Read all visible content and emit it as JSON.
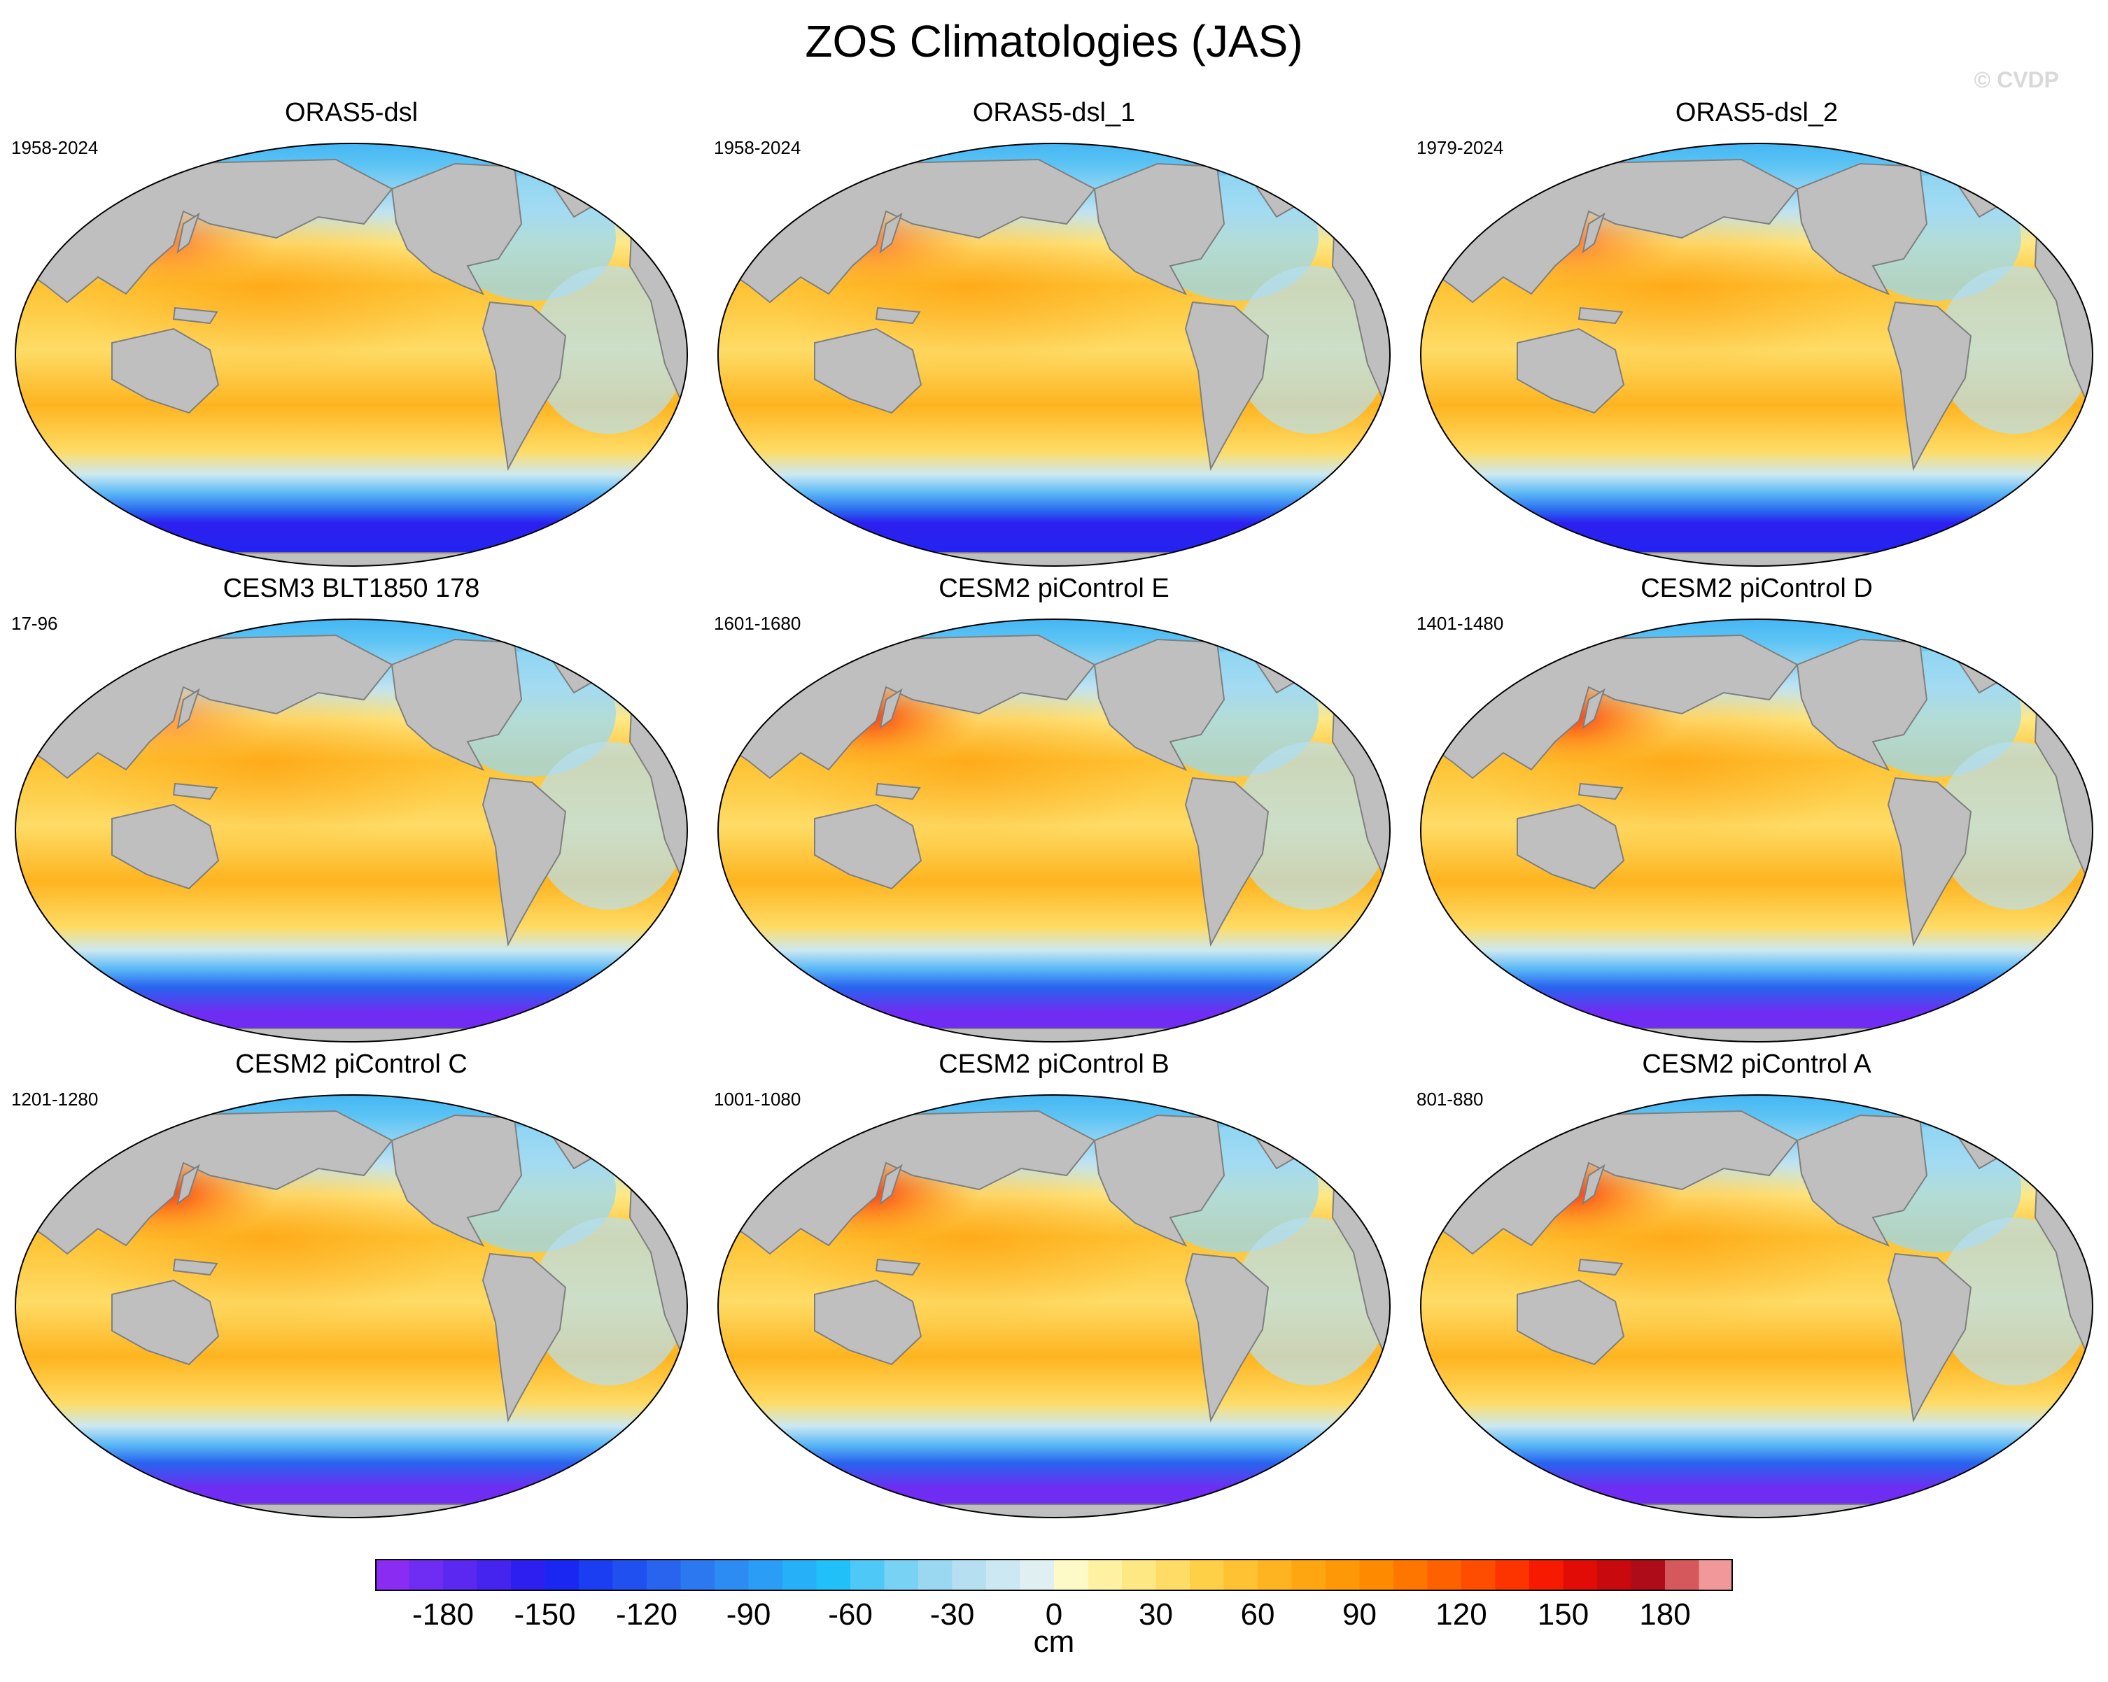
{
  "figure": {
    "title": "ZOS Climatologies (JAS)",
    "credit": "© CVDP"
  },
  "panels": [
    {
      "title": "ORAS5-dsl",
      "period": "1958-2024",
      "style": "obs"
    },
    {
      "title": "ORAS5-dsl_1",
      "period": "1958-2024",
      "style": "obs"
    },
    {
      "title": "ORAS5-dsl_2",
      "period": "1979-2024",
      "style": "obs"
    },
    {
      "title": "CESM3 BLT1850 178",
      "period": "17-96",
      "style": "cesm3"
    },
    {
      "title": "CESM2 piControl E",
      "period": "1601-1680",
      "style": "model"
    },
    {
      "title": "CESM2 piControl D",
      "period": "1401-1480",
      "style": "model"
    },
    {
      "title": "CESM2 piControl C",
      "period": "1201-1280",
      "style": "model"
    },
    {
      "title": "CESM2 piControl B",
      "period": "1001-1080",
      "style": "model"
    },
    {
      "title": "CESM2 piControl A",
      "period": "801-880",
      "style": "model"
    }
  ],
  "colorbar": {
    "unit": "cm",
    "min": -200,
    "max": 200,
    "step": 10,
    "tick_labels": [
      "-180",
      "-150",
      "-120",
      "-90",
      "-60",
      "-30",
      "0",
      "30",
      "60",
      "90",
      "120",
      "150",
      "180"
    ],
    "tick_values": [
      -180,
      -150,
      -120,
      -90,
      -60,
      -30,
      0,
      30,
      60,
      90,
      120,
      150,
      180
    ],
    "colors": [
      "#8a2cf2",
      "#6f2cf2",
      "#5a28f0",
      "#4424ee",
      "#2d1ff0",
      "#1a27f2",
      "#1c3ef2",
      "#2150f0",
      "#2864ee",
      "#2c78f0",
      "#2c8cf4",
      "#2a9ef6",
      "#26b0f8",
      "#22c0f8",
      "#4ec8f6",
      "#78d2f4",
      "#9ad8f2",
      "#b6e0f2",
      "#cce8f2",
      "#e0f0f2",
      "#fefac8",
      "#fef2a2",
      "#fee884",
      "#fedc66",
      "#fed048",
      "#fec232",
      "#feb420",
      "#fea612",
      "#fe9806",
      "#fe8a00",
      "#fe7600",
      "#fe6200",
      "#fe4c00",
      "#fe3400",
      "#f61a00",
      "#e20c06",
      "#c80a0e",
      "#ae0c18",
      "#d4585c",
      "#f0989a"
    ],
    "land_color": "#bfbfbf"
  }
}
